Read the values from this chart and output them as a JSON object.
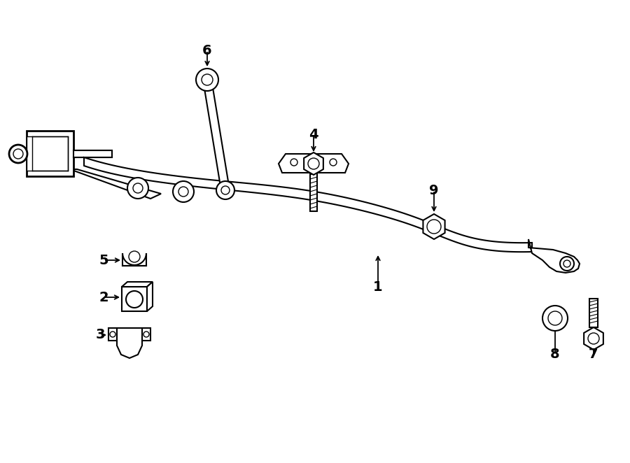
{
  "background_color": "#ffffff",
  "line_color": "#000000",
  "figsize": [
    9.0,
    6.62
  ],
  "dpi": 100
}
